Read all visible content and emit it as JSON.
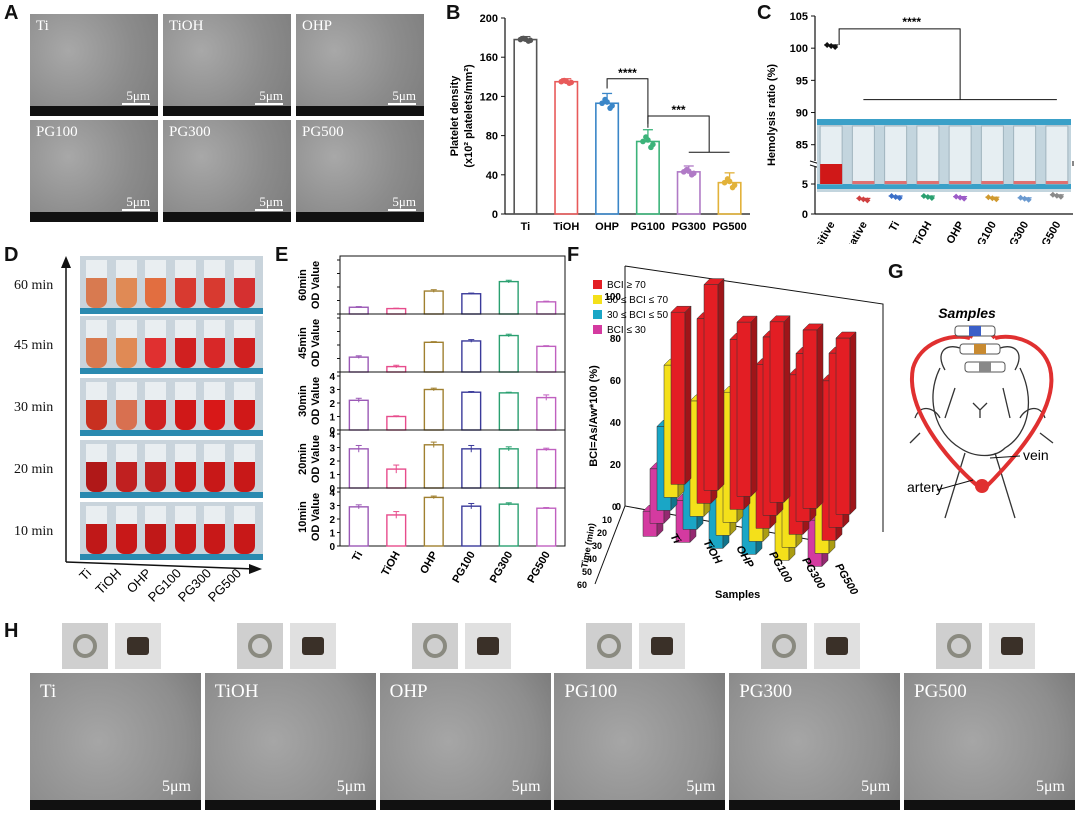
{
  "panel_labels": {
    "A": "A",
    "B": "B",
    "C": "C",
    "D": "D",
    "E": "E",
    "F": "F",
    "G": "G",
    "H": "H"
  },
  "sem_scale": "5μm",
  "panelA": {
    "images": [
      "Ti",
      "TiOH",
      "OHP",
      "PG100",
      "PG300",
      "PG500"
    ]
  },
  "chart_data": [
    {
      "id": "B",
      "type": "bar",
      "ylabel": "Platelet density (x10² platelets/mm²)",
      "ylim": [
        0,
        200
      ],
      "yticks": [
        0,
        40,
        80,
        120,
        160,
        200
      ],
      "categories": [
        "Ti",
        "TiOH",
        "OHP",
        "PG100",
        "PG300",
        "PG500"
      ],
      "values": [
        178,
        135,
        113,
        74,
        43,
        32
      ],
      "errors": [
        3,
        3,
        10,
        12,
        6,
        10
      ],
      "colors": [
        "#555555",
        "#e85a5a",
        "#3a86c8",
        "#3cb37a",
        "#b07ac6",
        "#e2b23a"
      ],
      "significance": [
        {
          "from": 2,
          "to": 3,
          "label": "****"
        },
        {
          "from": 3,
          "to": 4.5,
          "label": "***"
        }
      ]
    },
    {
      "id": "C",
      "type": "scatter",
      "ylabel": "Hemolysis ratio (%)",
      "yticks_low": [
        0,
        5
      ],
      "yticks_high": [
        85,
        90,
        95,
        100,
        105
      ],
      "categories": [
        "positive",
        "negative",
        "Ti",
        "TiOH",
        "OHP",
        "PG100",
        "PG300",
        "PG500"
      ],
      "values": [
        100.5,
        2.6,
        3.0,
        3.0,
        2.9,
        2.8,
        2.7,
        3.2
      ],
      "colors": [
        "#111111",
        "#d04040",
        "#3a6fc8",
        "#2aa070",
        "#9c5cc8",
        "#d09a30",
        "#6a9ad0",
        "#8a8a8a"
      ],
      "significance": [
        {
          "label": "****"
        }
      ]
    },
    {
      "id": "E",
      "type": "bar",
      "ylabel": "OD Value",
      "categories": [
        "Ti",
        "TiOH",
        "OHP",
        "PG100",
        "PG300",
        "PG500"
      ],
      "colors": [
        "#9b59b6",
        "#e74c8c",
        "#a08030",
        "#3a3a9a",
        "#2aa070",
        "#c060c0"
      ],
      "series": [
        {
          "name": "60min",
          "values": [
            0.5,
            0.4,
            1.7,
            1.5,
            2.4,
            0.9
          ],
          "errors": [
            0.05,
            0.03,
            0.1,
            0.05,
            0.1,
            0.05
          ]
        },
        {
          "name": "45min",
          "values": [
            1.1,
            0.4,
            2.2,
            2.3,
            2.7,
            1.9
          ],
          "errors": [
            0.1,
            0.1,
            0.05,
            0.1,
            0.1,
            0.05
          ]
        },
        {
          "name": "30min",
          "values": [
            2.2,
            1.0,
            3.0,
            2.8,
            2.75,
            2.4
          ],
          "errors": [
            0.15,
            0.05,
            0.1,
            0.05,
            0.05,
            0.2
          ]
        },
        {
          "name": "20min",
          "values": [
            2.9,
            1.4,
            3.2,
            2.9,
            2.9,
            2.85
          ],
          "errors": [
            0.25,
            0.3,
            0.2,
            0.25,
            0.15,
            0.1
          ]
        },
        {
          "name": "10min",
          "values": [
            2.9,
            2.3,
            3.6,
            2.95,
            3.1,
            2.8
          ],
          "errors": [
            0.15,
            0.25,
            0.1,
            0.2,
            0.1,
            0.05
          ]
        }
      ],
      "yticks": [
        0,
        1,
        2,
        3,
        4
      ]
    },
    {
      "id": "F",
      "type": "bar",
      "ylabel": "BCI=As/Aw*100 (%)",
      "xlabel": "Samples",
      "zlabel": "Time (min)",
      "categories": [
        "Ti",
        "TiOH",
        "OHP",
        "PG100",
        "PG300",
        "PG500"
      ],
      "times": [
        10,
        20,
        30,
        45,
        60
      ],
      "time_ticks": [
        0,
        10,
        20,
        30,
        40,
        50,
        60
      ],
      "yticks": [
        0,
        20,
        40,
        60,
        80,
        100
      ],
      "legend": [
        "BCI ≥ 70",
        "50 ≤ BCI ≤ 70",
        "30 ≤ BCI ≤ 50",
        "BCI ≤ 30"
      ],
      "legend_colors": [
        "#e31e24",
        "#f4e01a",
        "#1aa6c6",
        "#d43aa0"
      ],
      "values": [
        [
          82,
          63,
          40,
          26,
          12
        ],
        [
          98,
          88,
          55,
          44,
          20
        ],
        [
          83,
          81,
          62,
          50,
          35
        ],
        [
          86,
          85,
          78,
          60,
          43
        ],
        [
          85,
          80,
          76,
          60,
          55
        ],
        [
          84,
          83,
          76,
          58,
          22
        ]
      ]
    }
  ],
  "panelD": {
    "time_labels": [
      "60 min",
      "45 min",
      "30 min",
      "20 min",
      "10 min"
    ],
    "sample_labels": [
      "Ti",
      "TiOH",
      "OHP",
      "PG100",
      "PG300",
      "PG500"
    ]
  },
  "panelG": {
    "title": "Samples",
    "artery": "artery",
    "vein": "vein"
  },
  "panelH": {
    "images": [
      "Ti",
      "TiOH",
      "OHP",
      "PG100",
      "PG300",
      "PG500"
    ]
  }
}
